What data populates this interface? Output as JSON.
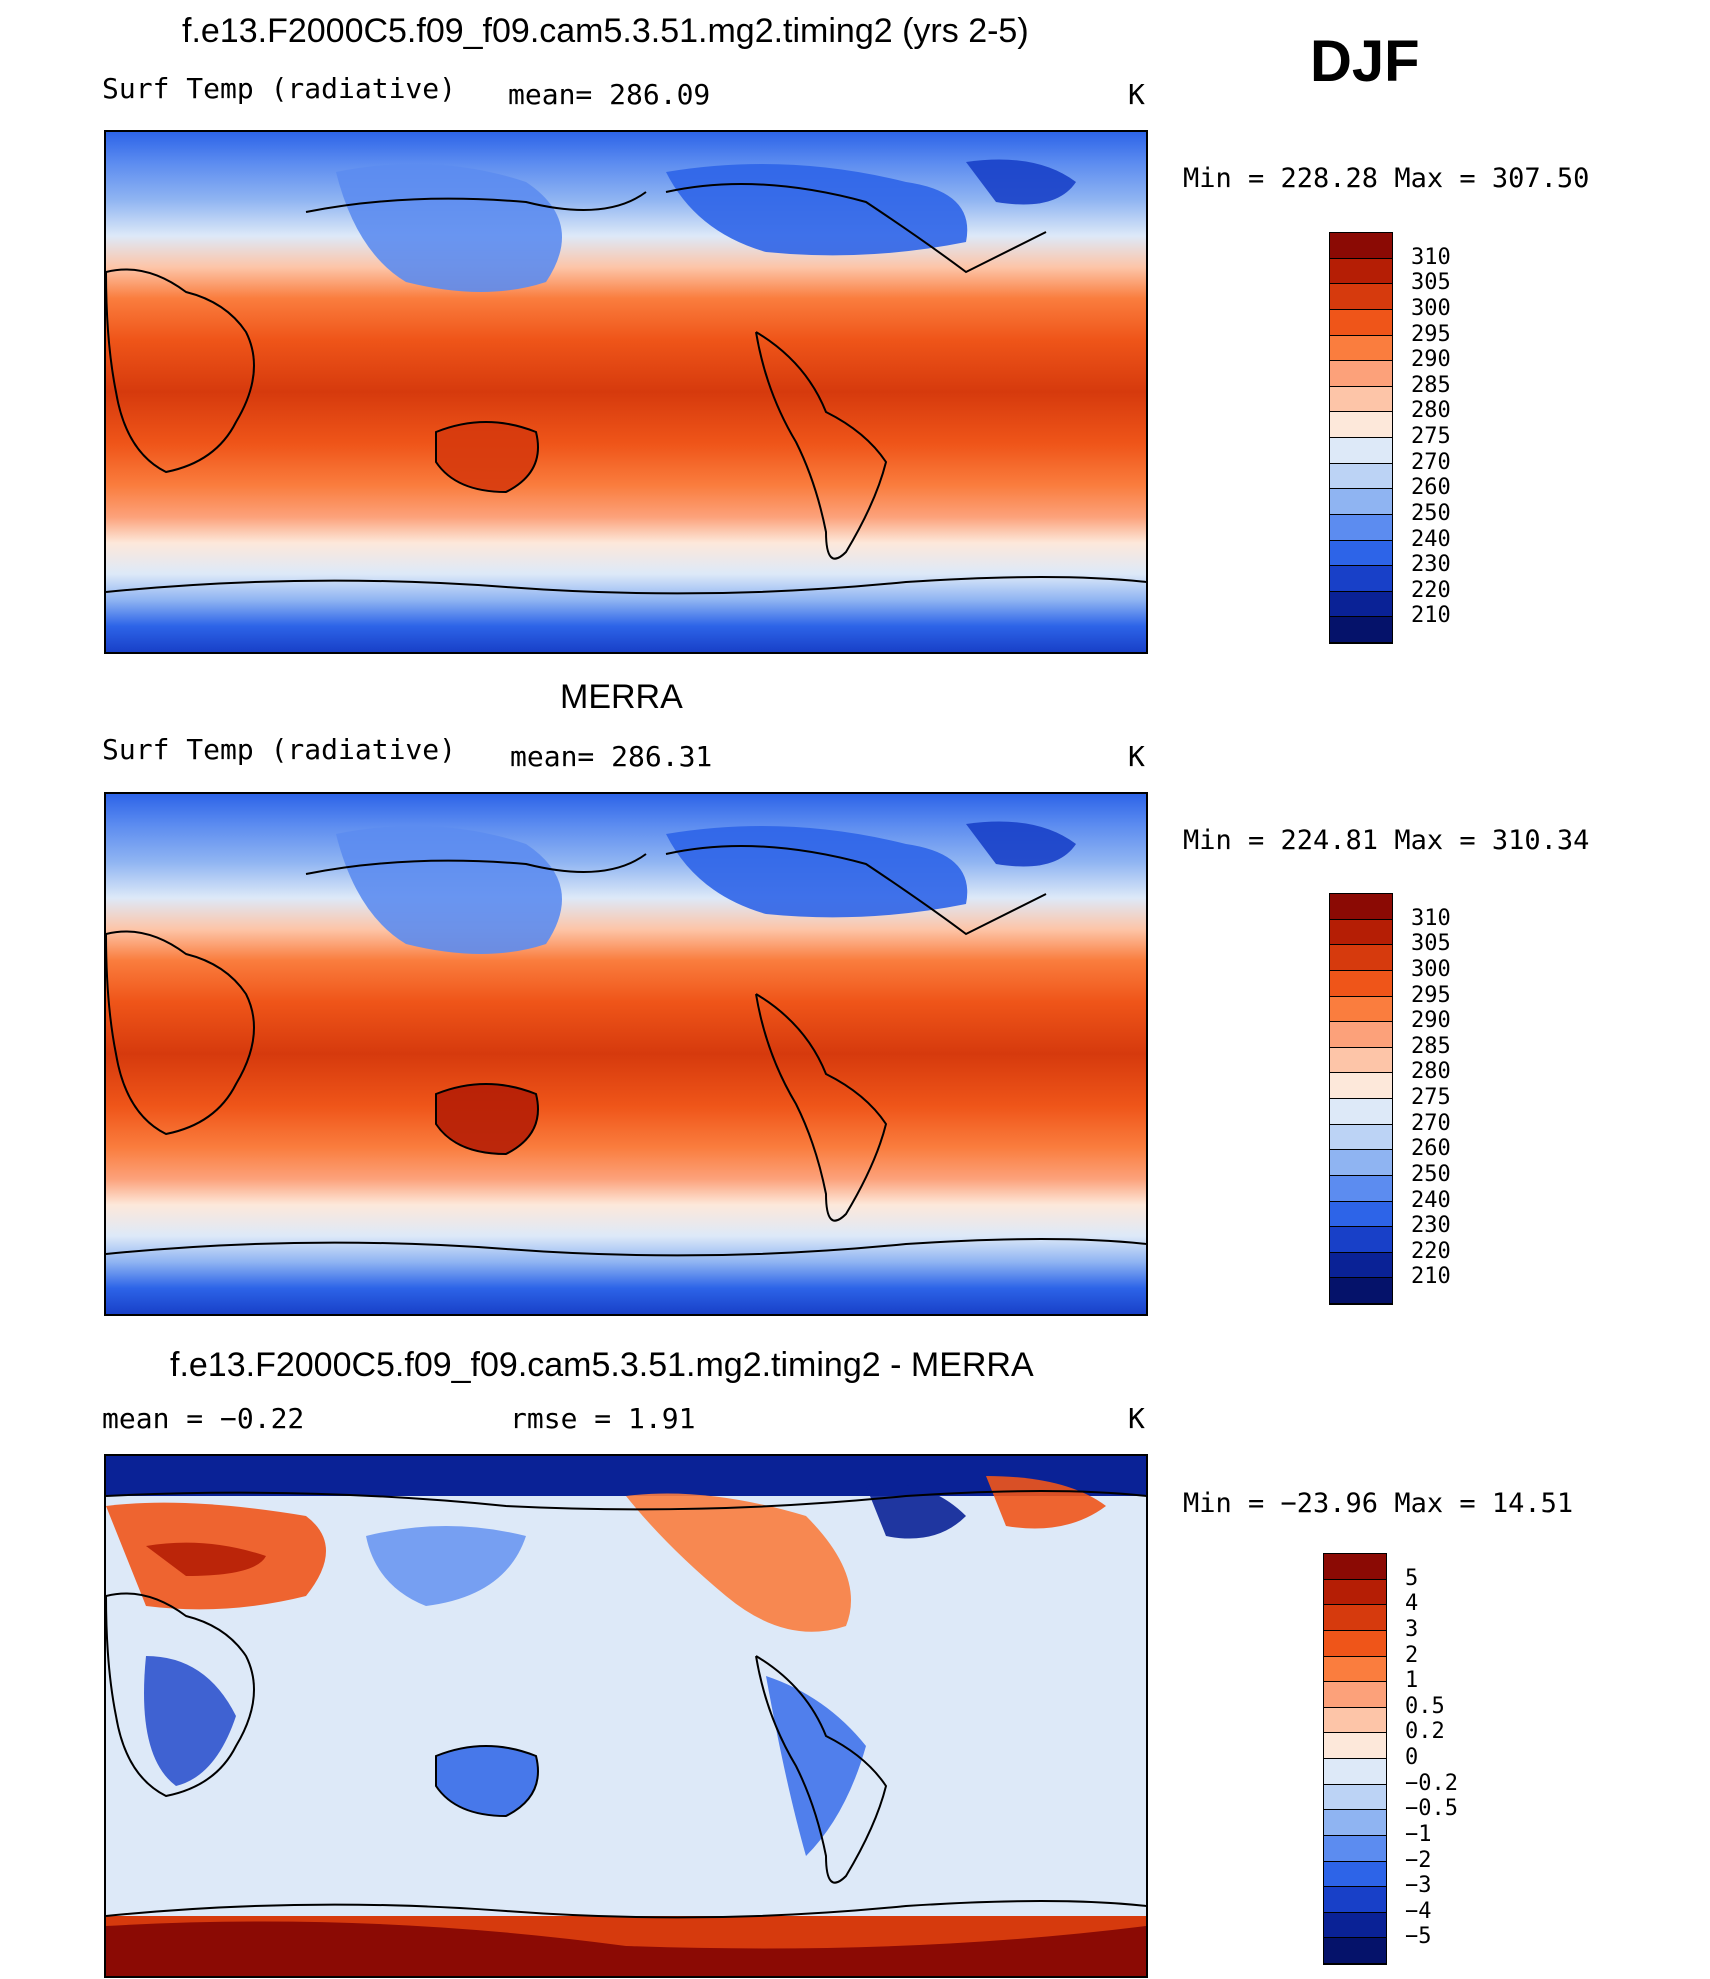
{
  "season": "DJF",
  "units": "K",
  "variable": "Surf Temp (radiative)",
  "panels": [
    {
      "title": "f.e13.F2000C5.f09_f09.cam5.3.51.mg2.timing2 (yrs 2-5)",
      "stat_left": "Surf Temp (radiative)",
      "stat_mid": "mean= 286.09",
      "units": "K",
      "minmax": "Min = 228.28 Max = 307.50"
    },
    {
      "title": "MERRA",
      "stat_left": "Surf Temp (radiative)",
      "stat_mid": "mean= 286.31",
      "units": "K",
      "minmax": "Min = 224.81 Max = 310.34"
    },
    {
      "title": "f.e13.F2000C5.f09_f09.cam5.3.51.mg2.timing2 - MERRA",
      "stat_left": "mean =    −0.22",
      "stat_mid": "rmse =    1.91",
      "units": "K",
      "minmax": "Min = −23.96 Max =  14.51"
    }
  ],
  "colorbars": {
    "absolute": {
      "labels": [
        "310",
        "305",
        "300",
        "295",
        "290",
        "285",
        "280",
        "275",
        "270",
        "260",
        "250",
        "240",
        "230",
        "220",
        "210"
      ],
      "colors": [
        "#8b0a04",
        "#b51e05",
        "#d63a0d",
        "#ef5519",
        "#fa7d3e",
        "#fca17a",
        "#fdc5a8",
        "#fde8da",
        "#dde9f8",
        "#bcd3f5",
        "#8fb4f2",
        "#5c8cf0",
        "#2d64e8",
        "#1840c8",
        "#0a2296",
        "#05126a"
      ]
    },
    "difference": {
      "labels": [
        "5",
        "4",
        "3",
        "2",
        "1",
        "0.5",
        "0.2",
        "0",
        "−0.2",
        "−0.5",
        "−1",
        "−2",
        "−3",
        "−4",
        "−5"
      ],
      "colors": [
        "#8b0a04",
        "#b51e05",
        "#d63a0d",
        "#ef5519",
        "#fa7d3e",
        "#fca17a",
        "#fdc5a8",
        "#fde8da",
        "#dde9f8",
        "#bcd3f5",
        "#8fb4f2",
        "#5c8cf0",
        "#2d64e8",
        "#1840c8",
        "#0a2296",
        "#05126a"
      ]
    }
  }
}
